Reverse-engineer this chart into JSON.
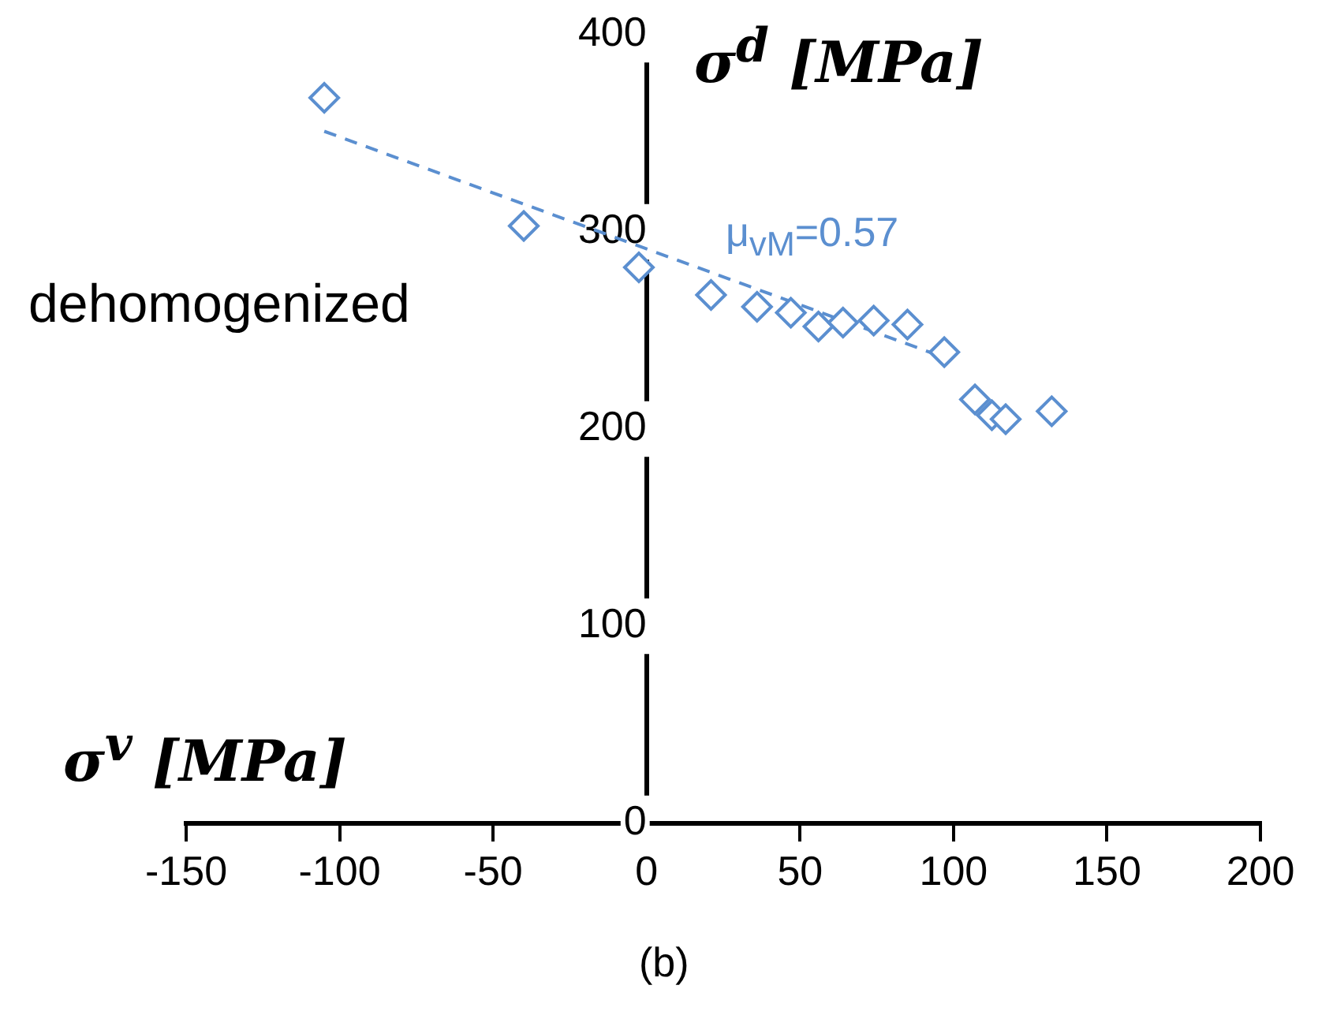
{
  "chart_data": {
    "type": "scatter",
    "xlabel": "σ$^{v}$ [MPa]",
    "ylabel": "σ$^{d}$ [MPa]",
    "xlim": [
      -150,
      200
    ],
    "xticks": [
      -150,
      -100,
      -50,
      0,
      50,
      100,
      150,
      200
    ],
    "ylim": [
      0,
      400
    ],
    "yticks": [
      0,
      100,
      200,
      300,
      400
    ],
    "marker": "diamond",
    "series": [
      {
        "color": "#5b8fd0",
        "x": [
          -105,
          -40,
          -2.5,
          21,
          36,
          47,
          56,
          64,
          74,
          85,
          97,
          107,
          112.5,
          117,
          132
        ],
        "values": [
          368,
          303,
          282,
          268,
          262,
          259,
          252,
          254,
          255,
          253,
          239,
          215,
          207,
          205,
          209
        ]
      },
      {
        "type": "line",
        "color": "#5b8fd0",
        "marker": "none",
        "line_style": "dashed",
        "x": [
          -105,
          94
        ],
        "values": [
          351,
          238
        ]
      }
    ],
    "annotations": [
      "μ$_{vM}$=0.57",
      "dehomogenized",
      "(b)"
    ]
  }
}
